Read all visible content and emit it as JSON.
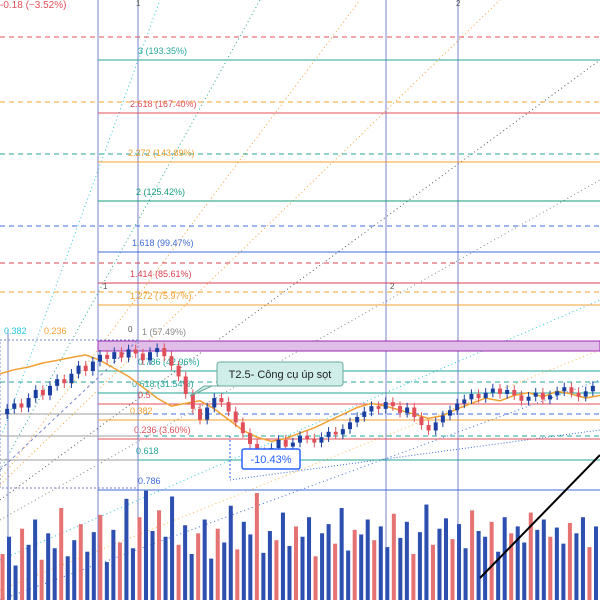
{
  "chart_data": {
    "type": "candlestick",
    "title": "",
    "top_left_label": "-0.18 (−3.52%)",
    "time_markers": [
      "1",
      "2",
      "0"
    ],
    "fib_extension_levels": [
      {
        "label": "3 (193.35%)",
        "color": "#26a69a",
        "style": "solid"
      },
      {
        "label": "2.618 (167.40%)",
        "color": "#e0505a",
        "style": "solid"
      },
      {
        "label": "2.272 (143.89%)",
        "color": "#f0a030",
        "style": "solid"
      },
      {
        "label": "2 (125.42%)",
        "color": "#139c7a",
        "style": "solid"
      },
      {
        "label": "1.618 (99.47%)",
        "color": "#3d6cd9",
        "style": "solid"
      },
      {
        "label": "1.414 (85.61%)",
        "color": "#d94050",
        "style": "solid"
      },
      {
        "label": "1.272 (75.97%)",
        "color": "#f0a030",
        "style": "solid"
      },
      {
        "label": "1 (57.49%)",
        "color": "#888888",
        "style": "solid"
      },
      {
        "label": "0.786 (42.96%)",
        "color": "#26a69a",
        "style": "solid"
      },
      {
        "label": "0.618 (31.54%)",
        "color": "#26a69a",
        "style": "solid"
      },
      {
        "label": "0.5",
        "color": "#e0505a",
        "style": "solid"
      },
      {
        "label": "0.382",
        "color": "#f0a030",
        "style": "solid"
      },
      {
        "label": "0.236 (3.60%)",
        "color": "#e0505a",
        "style": "solid"
      },
      {
        "label": "0.618",
        "color": "#26a69a",
        "style": "solid"
      },
      {
        "label": "0.786",
        "color": "#3d6cd9",
        "style": "solid"
      }
    ],
    "fib_left_labels": [
      "0.382",
      "0.236"
    ],
    "annotation": {
      "text": "T2.5- Công cụ úp sọt",
      "fill": "#cfeeea",
      "border": "#6aa89f"
    },
    "badge": {
      "text": "-10.43%",
      "color": "#2962ff"
    },
    "candles": [
      30.0,
      30.4,
      30.8,
      30.5,
      31.2,
      31.8,
      31.4,
      32.1,
      32.6,
      32.3,
      33.0,
      33.6,
      33.2,
      33.9,
      34.4,
      34.1,
      34.6,
      34.2,
      34.8,
      34.5,
      34.0,
      34.6,
      34.9,
      34.3,
      33.6,
      32.8,
      31.5,
      30.4,
      29.6,
      30.5,
      31.2,
      30.9,
      30.2,
      29.4,
      28.6,
      27.8,
      27.2,
      26.9,
      27.5,
      28.1,
      27.6,
      27.9,
      28.4,
      28.2,
      27.9,
      28.3,
      28.7,
      28.5,
      28.9,
      29.4,
      29.8,
      30.2,
      30.6,
      30.4,
      30.9,
      30.6,
      30.1,
      30.5,
      29.8,
      29.2,
      28.8,
      29.4,
      29.9,
      30.3,
      30.8,
      31.1,
      31.5,
      31.2,
      31.6,
      31.9,
      31.5,
      31.8,
      31.4,
      31.0,
      31.3,
      31.6,
      31.1,
      31.4,
      31.7,
      32.0,
      31.6,
      31.3,
      31.7,
      32.1
    ],
    "price_range": [
      25.5,
      35.5
    ],
    "moving_average": [
      33.0,
      33.3,
      33.5,
      33.8,
      34.0,
      34.2,
      34.4,
      34.0,
      33.4,
      32.8,
      32.0,
      31.2,
      30.6,
      30.8,
      31.0,
      30.4,
      29.6,
      28.8,
      28.3,
      28.0,
      28.2,
      28.6,
      29.0,
      29.5,
      30.0,
      30.5,
      30.8,
      30.6,
      30.3,
      30.0,
      29.7,
      29.9,
      30.4,
      30.8,
      31.2,
      31.0,
      31.4,
      31.6,
      31.3,
      31.7,
      31.5,
      31.2,
      31.4
    ],
    "volume": [
      40,
      55,
      30,
      62,
      48,
      70,
      35,
      58,
      45,
      80,
      38,
      52,
      66,
      42,
      59,
      74,
      33,
      61,
      50,
      88,
      45,
      72,
      95,
      60,
      78,
      55,
      90,
      48,
      65,
      40,
      58,
      70,
      36,
      62,
      50,
      82,
      44,
      68,
      57,
      93,
      41,
      60,
      52,
      76,
      47,
      64,
      55,
      72,
      38,
      58,
      66,
      49,
      80,
      43,
      61,
      57,
      70,
      52,
      64,
      46,
      75,
      54,
      68,
      40,
      59,
      83,
      48,
      62,
      71,
      53,
      66,
      45,
      78,
      60,
      55,
      68,
      42,
      72,
      58,
      64,
      50,
      76,
      61,
      70,
      55,
      63,
      49,
      67,
      58,
      72,
      46,
      64
    ],
    "volume_range": [
      0,
      100
    ]
  }
}
